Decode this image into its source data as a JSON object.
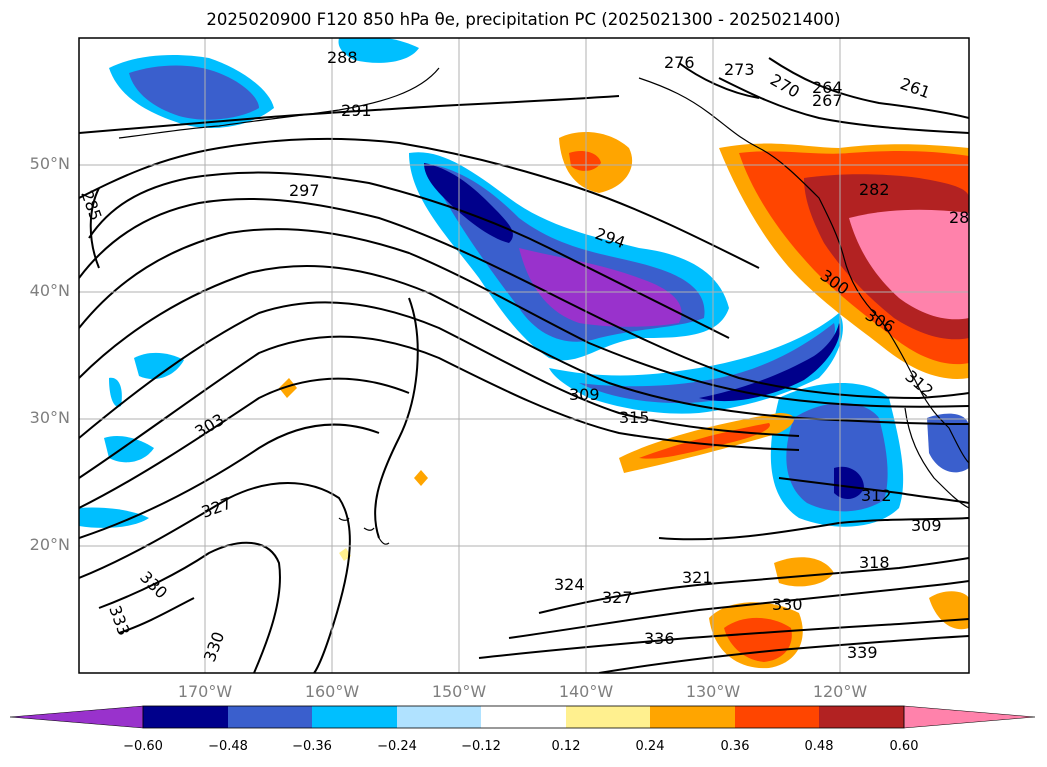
{
  "title": "2025020900 F120 850 hPa θe, precipitation PC (2025021300 - 2025021400)",
  "map": {
    "lat_labels": [
      "50°N",
      "40°N",
      "30°N",
      "20°N"
    ],
    "lon_labels": [
      "170°W",
      "160°W",
      "150°W",
      "140°W",
      "130°W",
      "120°W"
    ],
    "contour_labels": [
      "288",
      "291",
      "297",
      "294",
      "276",
      "273",
      "270",
      "264",
      "267",
      "261",
      "285",
      "282",
      "300",
      "306",
      "312",
      "309",
      "315",
      "303",
      "327",
      "330",
      "333",
      "324",
      "321",
      "318",
      "336",
      "339",
      "312",
      "309",
      "330",
      "327",
      "330",
      "28"
    ]
  },
  "colorbar": {
    "ticks": [
      "−0.60",
      "−0.48",
      "−0.36",
      "−0.24",
      "−0.12",
      "0.12",
      "0.24",
      "0.36",
      "0.48",
      "0.60"
    ],
    "colors": [
      "#9932cc",
      "#00008b",
      "#3a5fcd",
      "#00bfff",
      "#b0e2ff",
      "#ffffff",
      "#fff08f",
      "#ffa500",
      "#ff4500",
      "#b22222",
      "#ff82ab"
    ]
  }
}
